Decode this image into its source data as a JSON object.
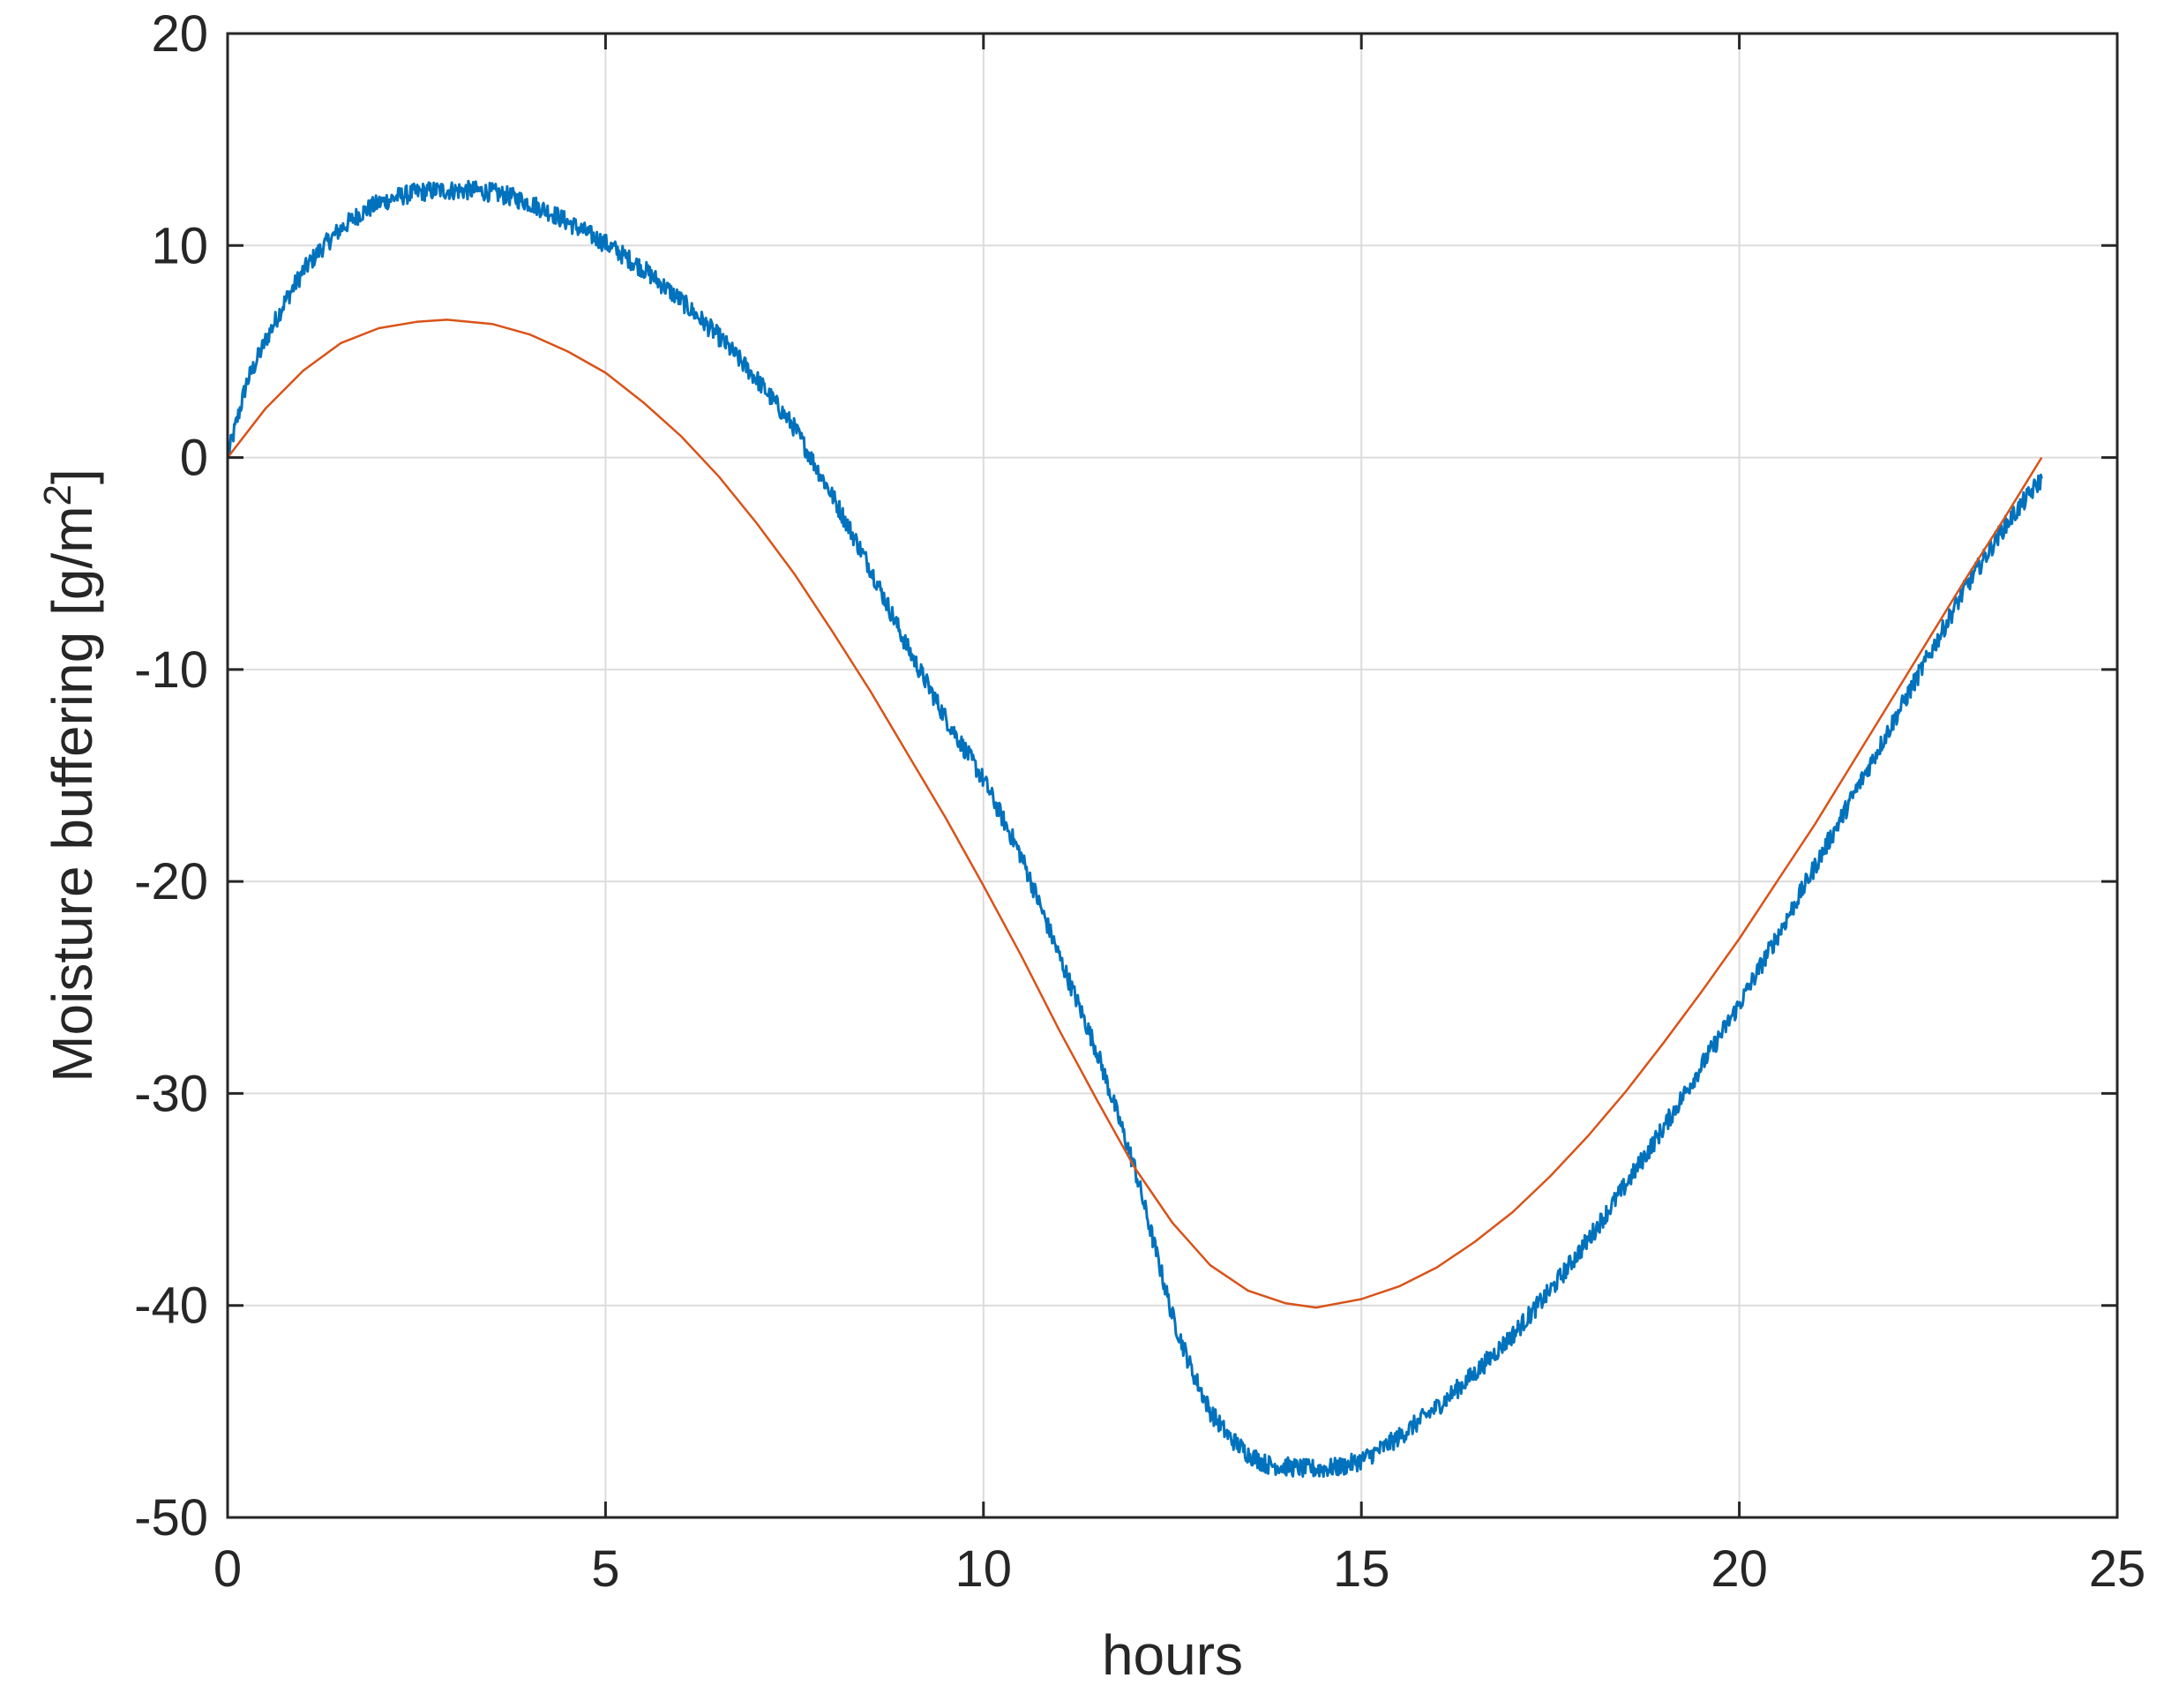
{
  "chart_data": {
    "type": "line",
    "title": "",
    "xlabel": "hours",
    "ylabel": "Moisture buffering [g/m",
    "ylabel_superscript": "2",
    "ylabel_suffix": "]",
    "xlim": [
      0,
      25
    ],
    "ylim": [
      -50,
      20
    ],
    "xticks": [
      0,
      5,
      10,
      15,
      20,
      25
    ],
    "yticks": [
      -50,
      -40,
      -30,
      -20,
      -10,
      0,
      10,
      20
    ],
    "xtick_labels": [
      "0",
      "5",
      "10",
      "15",
      "20",
      "25"
    ],
    "ytick_labels": [
      "-50",
      "-40",
      "-30",
      "-20",
      "-10",
      "0",
      "10",
      "20"
    ],
    "grid": true,
    "legend": "none",
    "series": [
      {
        "color": "#0072BD",
        "noisy": true,
        "x": [
          0,
          0.25,
          0.5,
          0.75,
          1,
          1.25,
          1.5,
          1.75,
          2,
          2.25,
          2.5,
          2.75,
          3,
          3.25,
          3.5,
          3.75,
          4,
          4.25,
          4.5,
          4.75,
          5,
          5.5,
          6,
          6.5,
          7,
          7.5,
          8,
          8.5,
          9,
          9.5,
          10,
          10.5,
          11,
          11.5,
          12,
          12.25,
          12.5,
          12.75,
          13,
          13.25,
          13.5,
          13.75,
          14,
          14.25,
          14.5,
          14.75,
          15,
          15.25,
          15.5,
          16,
          16.5,
          17,
          17.5,
          18,
          18.5,
          19,
          19.5,
          20,
          20.5,
          21,
          21.5,
          22,
          22.5,
          23,
          23.5,
          24
        ],
        "y": [
          0,
          3.5,
          5.5,
          7.3,
          8.8,
          9.9,
          10.8,
          11.5,
          12.0,
          12.3,
          12.5,
          12.6,
          12.6,
          12.6,
          12.5,
          12.3,
          12.0,
          11.6,
          11.1,
          10.6,
          10.1,
          8.9,
          7.4,
          5.7,
          3.7,
          1.4,
          -1.8,
          -5.2,
          -9.0,
          -12.3,
          -15.2,
          -18.8,
          -23.5,
          -28.0,
          -33.5,
          -37.0,
          -40.5,
          -43.0,
          -45.0,
          -46.2,
          -47.0,
          -47.5,
          -47.6,
          -47.7,
          -47.7,
          -47.6,
          -47.3,
          -46.8,
          -46.2,
          -44.8,
          -43.2,
          -41.4,
          -39.3,
          -36.9,
          -34.3,
          -31.6,
          -28.7,
          -25.8,
          -22.6,
          -19.3,
          -16.0,
          -12.7,
          -9.4,
          -6.1,
          -3.3,
          -1.0
        ]
      },
      {
        "color": "#D95319",
        "noisy": false,
        "x": [
          0,
          0.5,
          1,
          1.5,
          2,
          2.5,
          2.9,
          3.5,
          4,
          4.5,
          5,
          5.5,
          6,
          6.5,
          7,
          7.5,
          8,
          8.5,
          9,
          9.5,
          10,
          10.5,
          11,
          11.5,
          12,
          12.5,
          13,
          13.5,
          14,
          14.4,
          15,
          15.5,
          16,
          16.5,
          17,
          17.5,
          18,
          18.5,
          19,
          19.5,
          20,
          20.5,
          21,
          21.5,
          22,
          22.5,
          23,
          23.5,
          24
        ],
        "y": [
          0,
          2.3,
          4.1,
          5.4,
          6.1,
          6.4,
          6.5,
          6.3,
          5.8,
          5.0,
          4.0,
          2.6,
          1.0,
          -0.9,
          -3.1,
          -5.5,
          -8.2,
          -11.0,
          -14.0,
          -17.0,
          -20.2,
          -23.5,
          -27.0,
          -30.3,
          -33.5,
          -36.1,
          -38.1,
          -39.3,
          -39.9,
          -40.1,
          -39.7,
          -39.1,
          -38.2,
          -37.0,
          -35.6,
          -33.9,
          -32.0,
          -29.9,
          -27.6,
          -25.2,
          -22.7,
          -20.0,
          -17.3,
          -14.4,
          -11.5,
          -8.6,
          -5.7,
          -2.9,
          0
        ]
      }
    ]
  }
}
